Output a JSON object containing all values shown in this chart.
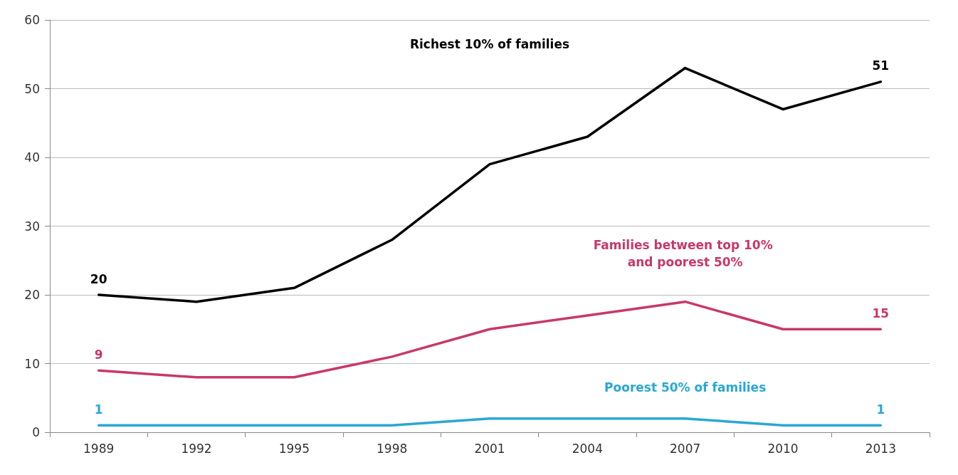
{
  "chart_data": {
    "type": "line",
    "categories": [
      "1989",
      "1992",
      "1995",
      "1998",
      "2001",
      "2004",
      "2007",
      "2010",
      "2013"
    ],
    "series": [
      {
        "name": "Richest 10% of families",
        "color": "#000000",
        "values": [
          20,
          19,
          21,
          28,
          39,
          43,
          53,
          47,
          51
        ],
        "value_labels": [
          "20",
          null,
          null,
          null,
          null,
          null,
          null,
          null,
          "51"
        ]
      },
      {
        "name": "Families between top 10% and poorest 50%",
        "color": "#c8386a",
        "values": [
          9,
          8,
          8,
          11,
          15,
          17,
          19,
          15,
          15
        ],
        "value_labels": [
          "9",
          null,
          null,
          null,
          null,
          null,
          null,
          null,
          "15"
        ]
      },
      {
        "name": "Poorest 50% of families",
        "color": "#2aa7d6",
        "values": [
          1,
          1,
          1,
          1,
          2,
          2,
          2,
          1,
          1
        ],
        "value_labels": [
          "1",
          null,
          null,
          null,
          null,
          null,
          null,
          null,
          "1"
        ]
      }
    ],
    "ylim": [
      0,
      60
    ],
    "yticks": [
      0,
      10,
      20,
      30,
      40,
      50,
      60
    ],
    "grid": "y",
    "marker": "none",
    "line_style": "solid"
  }
}
